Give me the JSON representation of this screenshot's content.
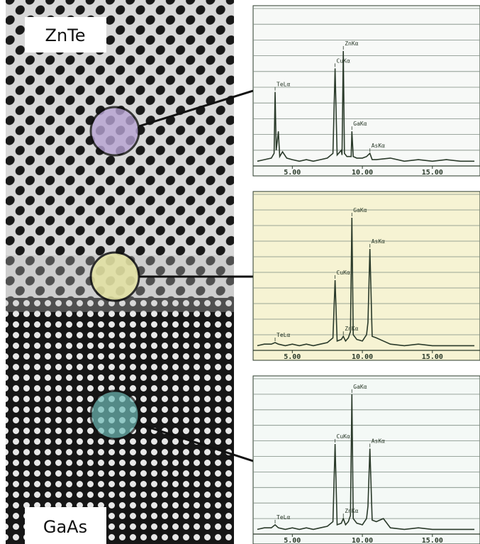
{
  "image_labels": [
    "ZnTe",
    "GaAs"
  ],
  "chart_data": [
    {
      "type": "line",
      "color": "#2a3a2a",
      "background": "#f7f9f7",
      "grid": true,
      "xlim": [
        2.2,
        18.4
      ],
      "xticks": [
        {
          "value": 5,
          "label": "5.00"
        },
        {
          "value": 10,
          "label": "10.00"
        },
        {
          "value": 15,
          "label": "15.00"
        }
      ],
      "ylim": [
        0,
        100
      ],
      "yticks": [
        10,
        20,
        30,
        40,
        50,
        60,
        70,
        80,
        90,
        100
      ],
      "x": [
        2.5,
        3.0,
        3.5,
        3.7,
        3.77,
        3.85,
        4.0,
        4.1,
        4.3,
        4.6,
        5.0,
        5.5,
        6.0,
        6.5,
        7.0,
        7.5,
        7.9,
        8.05,
        8.2,
        8.5,
        8.55,
        8.64,
        8.72,
        8.9,
        9.2,
        9.25,
        9.35,
        9.6,
        10.0,
        10.3,
        10.54,
        10.7,
        11.0,
        12.0,
        13.0,
        14.0,
        15.0,
        16.0,
        17.0,
        18.0
      ],
      "values": [
        3,
        4,
        5,
        8,
        47,
        10,
        22,
        6,
        9,
        5,
        4,
        3,
        4,
        3,
        4,
        5,
        8,
        62,
        7,
        10,
        7,
        73,
        8,
        6,
        6,
        22,
        6,
        5,
        5,
        6,
        8,
        4,
        4,
        5,
        3,
        4,
        3,
        4,
        3,
        3
      ],
      "annotations": [
        {
          "text": "TeLα",
          "x": 3.77
        },
        {
          "text": "CuKα",
          "x": 8.05
        },
        {
          "text": "ZnKα",
          "x": 8.64
        },
        {
          "text": "GaKα",
          "x": 9.25
        },
        {
          "text": "AsKα",
          "x": 10.54
        }
      ]
    },
    {
      "type": "line",
      "color": "#2a3a2a",
      "background": "#f6f3d3",
      "grid": true,
      "xlim": [
        2.2,
        18.4
      ],
      "xticks": [
        {
          "value": 5,
          "label": "5.00"
        },
        {
          "value": 10,
          "label": "10.00"
        },
        {
          "value": 15,
          "label": "15.00"
        }
      ],
      "ylim": [
        0,
        100
      ],
      "yticks": [
        10,
        20,
        30,
        40,
        50,
        60,
        70,
        80,
        90,
        100
      ],
      "x": [
        2.5,
        3.0,
        3.5,
        3.77,
        4.0,
        4.5,
        5.0,
        5.5,
        6.0,
        6.5,
        7.0,
        7.5,
        7.9,
        8.05,
        8.2,
        8.5,
        8.64,
        8.8,
        9.0,
        9.15,
        9.25,
        9.35,
        9.6,
        10.0,
        10.3,
        10.4,
        10.54,
        10.7,
        11.0,
        11.5,
        12.0,
        13.0,
        14.0,
        15.0,
        16.0,
        17.0,
        18.0
      ],
      "values": [
        3,
        4,
        4,
        5,
        4,
        3,
        4,
        3,
        4,
        3,
        4,
        5,
        8,
        45,
        6,
        7,
        9,
        6,
        8,
        12,
        85,
        10,
        7,
        6,
        10,
        18,
        65,
        9,
        8,
        6,
        4,
        3,
        4,
        3,
        3,
        3,
        3
      ],
      "annotations": [
        {
          "text": "TeLα",
          "x": 3.77
        },
        {
          "text": "CuKα",
          "x": 8.05
        },
        {
          "text": "ZnKα",
          "x": 8.64
        },
        {
          "text": "GaKα",
          "x": 9.25
        },
        {
          "text": "AsKα",
          "x": 10.54
        }
      ]
    },
    {
      "type": "line",
      "color": "#2a3a2a",
      "background": "#f4f9f6",
      "grid": true,
      "xlim": [
        2.2,
        18.4
      ],
      "xticks": [
        {
          "value": 5,
          "label": "5.00"
        },
        {
          "value": 10,
          "label": "10.00"
        },
        {
          "value": 15,
          "label": "15.00"
        }
      ],
      "ylim": [
        0,
        100
      ],
      "yticks": [
        10,
        20,
        30,
        40,
        50,
        60,
        70,
        80,
        90,
        100
      ],
      "x": [
        2.5,
        3.0,
        3.5,
        3.77,
        4.0,
        4.5,
        5.0,
        5.5,
        6.0,
        6.5,
        7.0,
        7.5,
        7.9,
        8.05,
        8.2,
        8.5,
        8.64,
        8.8,
        9.0,
        9.15,
        9.25,
        9.35,
        9.6,
        10.0,
        10.3,
        10.4,
        10.54,
        10.7,
        11.0,
        11.5,
        12.0,
        13.0,
        14.0,
        15.0,
        16.0,
        17.0,
        18.0
      ],
      "values": [
        3,
        4,
        4,
        6,
        4,
        3,
        4,
        3,
        4,
        3,
        4,
        5,
        8,
        58,
        6,
        7,
        10,
        6,
        8,
        12,
        90,
        10,
        7,
        6,
        10,
        18,
        55,
        9,
        8,
        10,
        4,
        3,
        4,
        3,
        3,
        3,
        3
      ],
      "annotations": [
        {
          "text": "TeLα",
          "x": 3.77
        },
        {
          "text": "CuKα",
          "x": 8.05
        },
        {
          "text": "ZnKα",
          "x": 8.64
        },
        {
          "text": "GaKα",
          "x": 9.25
        },
        {
          "text": "AsKα",
          "x": 10.54
        }
      ]
    }
  ]
}
